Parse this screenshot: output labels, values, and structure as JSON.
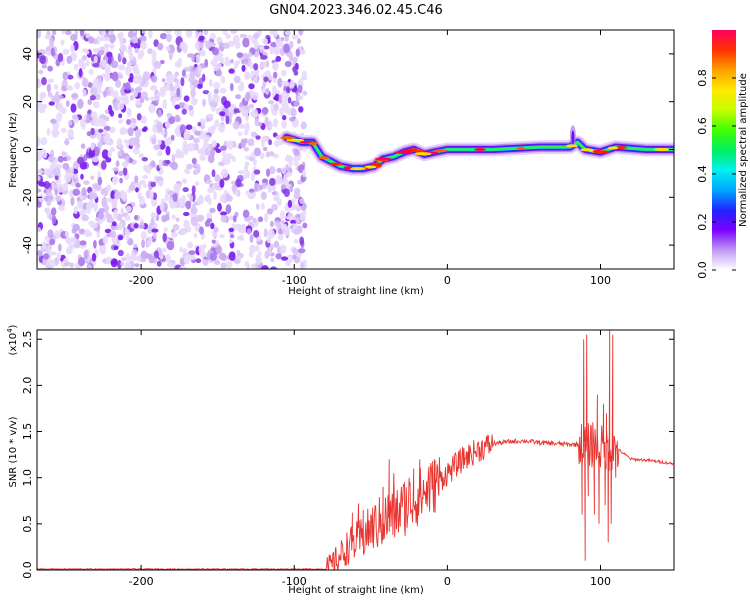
{
  "title": "GN04.2023.346.02.45.C46",
  "chart_data": [
    {
      "type": "heatmap",
      "xlabel": "Height of straight line (km)",
      "ylabel": "Frequency (Hz)",
      "xlim": [
        -268,
        148
      ],
      "ylim": [
        -50,
        50
      ],
      "xticks": [
        -200,
        -100,
        0,
        100
      ],
      "yticks": [
        -40,
        -20,
        0,
        20,
        40
      ],
      "colorbar": {
        "label": "Normalized spectral amplitude",
        "range": [
          0.0,
          1.0
        ],
        "ticks": [
          0.0,
          0.2,
          0.4,
          0.6,
          0.8
        ],
        "colormap": [
          "#ffffff",
          "#c09af4",
          "#7a00ff",
          "#1f24ff",
          "#00a8ff",
          "#00f0f0",
          "#00f060",
          "#40ff00",
          "#c8ff00",
          "#ffe800",
          "#ffa000",
          "#ff3000",
          "#ff0060"
        ]
      },
      "noise_region_x": [
        -268,
        -93
      ],
      "signal_track": [
        [
          -105,
          5
        ],
        [
          -95,
          3
        ],
        [
          -88,
          3
        ],
        [
          -82,
          -3
        ],
        [
          -76,
          -5
        ],
        [
          -70,
          -7
        ],
        [
          -62,
          -8
        ],
        [
          -55,
          -8
        ],
        [
          -48,
          -7
        ],
        [
          -42,
          -4
        ],
        [
          -35,
          -3
        ],
        [
          -28,
          -1
        ],
        [
          -22,
          0
        ],
        [
          -15,
          -2
        ],
        [
          -8,
          -1
        ],
        [
          0,
          0
        ],
        [
          30,
          0
        ],
        [
          60,
          1
        ],
        [
          80,
          1
        ],
        [
          85,
          3
        ],
        [
          90,
          0
        ],
        [
          100,
          -1
        ],
        [
          110,
          1
        ],
        [
          130,
          0
        ],
        [
          148,
          0
        ]
      ]
    },
    {
      "type": "line",
      "xlabel": "Height of straight line (km)",
      "ylabel": "SNR (10 * v/v)",
      "yscale_label": "(x10",
      "yscale_exp": "4",
      "yscale_close": ")",
      "xlim": [
        -268,
        148
      ],
      "ylim": [
        0,
        2.6
      ],
      "xticks": [
        -200,
        -100,
        0,
        100
      ],
      "yticks": [
        0.0,
        0.5,
        1.0,
        1.5,
        2.0,
        2.5
      ],
      "color": "#e8332e",
      "envelope": [
        [
          -268,
          0.01
        ],
        [
          -80,
          0.01
        ],
        [
          -75,
          0.06
        ],
        [
          -70,
          0.15
        ],
        [
          -65,
          0.25
        ],
        [
          -60,
          0.3
        ],
        [
          -55,
          0.35
        ],
        [
          -50,
          0.45
        ],
        [
          -45,
          0.5
        ],
        [
          -40,
          0.55
        ],
        [
          -30,
          0.65
        ],
        [
          -20,
          0.78
        ],
        [
          -10,
          0.9
        ],
        [
          0,
          1.05
        ],
        [
          10,
          1.2
        ],
        [
          20,
          1.3
        ],
        [
          30,
          1.37
        ],
        [
          40,
          1.39
        ],
        [
          50,
          1.4
        ],
        [
          60,
          1.38
        ],
        [
          70,
          1.37
        ],
        [
          80,
          1.36
        ],
        [
          86,
          1.36
        ],
        [
          112,
          1.3
        ],
        [
          120,
          1.2
        ],
        [
          130,
          1.19
        ],
        [
          140,
          1.17
        ],
        [
          148,
          1.15
        ]
      ],
      "spikes": [
        [
          -62,
          0.62
        ],
        [
          -58,
          0.72
        ],
        [
          -55,
          0.65
        ],
        [
          -48,
          0.4
        ],
        [
          -42,
          0.9
        ],
        [
          -38,
          1.2
        ],
        [
          -35,
          1.05
        ],
        [
          -30,
          0.9
        ],
        [
          -28,
          0.95
        ],
        [
          -25,
          1.0
        ],
        [
          -22,
          1.1
        ],
        [
          -18,
          1.2
        ],
        [
          -12,
          1.12
        ],
        [
          -8,
          1.18
        ],
        [
          89,
          2.5
        ],
        [
          91,
          2.55
        ],
        [
          95,
          1.6
        ],
        [
          98,
          1.9
        ],
        [
          102,
          1.8
        ],
        [
          104,
          1.7
        ],
        [
          106,
          2.6
        ],
        [
          108,
          2.55
        ],
        [
          111,
          1.4
        ]
      ],
      "dips": [
        [
          88,
          0.6
        ],
        [
          90,
          0.1
        ],
        [
          92,
          0.8
        ],
        [
          96,
          0.6
        ],
        [
          99,
          0.5
        ],
        [
          103,
          0.7
        ],
        [
          105,
          0.3
        ],
        [
          107,
          0.5
        ],
        [
          110,
          1.0
        ]
      ]
    }
  ]
}
